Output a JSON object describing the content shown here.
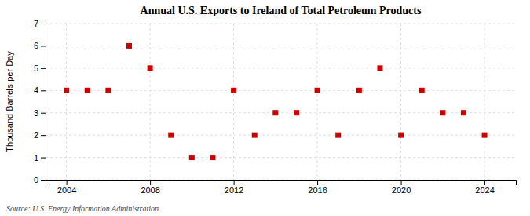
{
  "chart_data": {
    "type": "scatter",
    "title": "Annual U.S. Exports to Ireland of Total Petroleum Products",
    "ylabel": "Thousand Barrels per Day",
    "annotations": [
      "Source: U.S. Energy Information Administration"
    ],
    "x": [
      2004,
      2005,
      2006,
      2007,
      2008,
      2009,
      2010,
      2011,
      2012,
      2013,
      2014,
      2015,
      2016,
      2017,
      2018,
      2019,
      2020,
      2021,
      2022,
      2023,
      2024
    ],
    "values": [
      4,
      4,
      4,
      6,
      5,
      2,
      1,
      1,
      4,
      2,
      3,
      3,
      4,
      2,
      4,
      5,
      2,
      4,
      3,
      3,
      2
    ],
    "color": "#cc0000",
    "marker": "square",
    "xlim": [
      2003.0,
      2025.5
    ],
    "ylim": [
      0,
      7
    ],
    "xticks": [
      2004,
      2008,
      2012,
      2016,
      2020,
      2024
    ],
    "yticks": [
      0,
      1,
      2,
      3,
      4,
      5,
      6,
      7
    ],
    "grid": true
  }
}
